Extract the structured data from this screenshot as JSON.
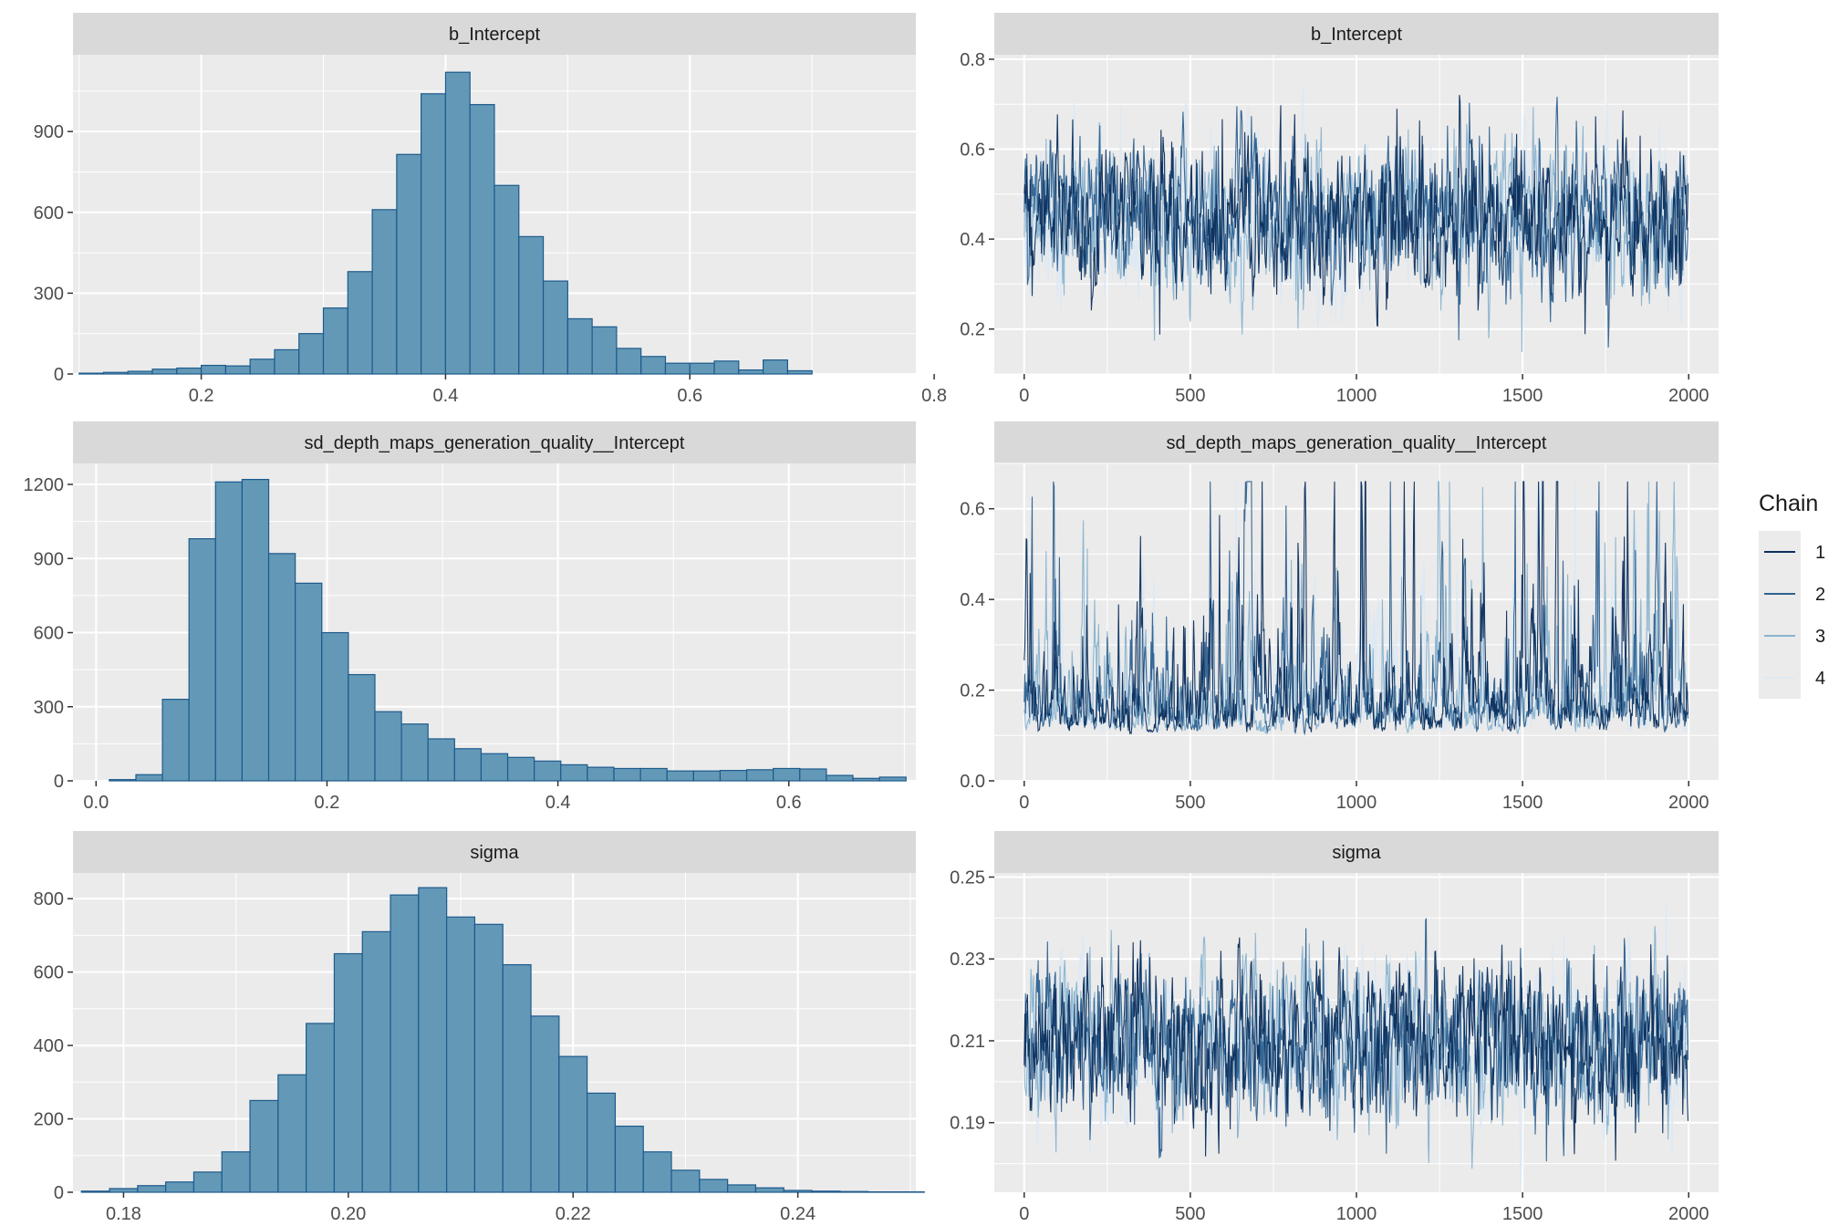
{
  "colors": {
    "panel_bg": "#ebebeb",
    "strip_bg": "#d9d9d9",
    "grid": "#ffffff",
    "hist_fill": "#6399b7",
    "hist_line": "#1d5a8c",
    "axis_text": "#4d4d4d",
    "chain_1": "#0b2e5c",
    "chain_2": "#2e6190",
    "chain_3": "#89b3cf",
    "chain_4": "#dde9f3"
  },
  "legend": {
    "title": "Chain",
    "items": [
      {
        "label": "1",
        "color": "#0b2e5c"
      },
      {
        "label": "2",
        "color": "#2e6190"
      },
      {
        "label": "3",
        "color": "#89b3cf"
      },
      {
        "label": "4",
        "color": "#dde9f3"
      }
    ],
    "position": "right"
  },
  "chart_data": [
    {
      "type": "bar",
      "title": "b_Intercept",
      "bins": [
        {
          "x": 0.11,
          "count": 3
        },
        {
          "x": 0.13,
          "count": 6
        },
        {
          "x": 0.15,
          "count": 10
        },
        {
          "x": 0.17,
          "count": 18
        },
        {
          "x": 0.19,
          "count": 22
        },
        {
          "x": 0.21,
          "count": 32
        },
        {
          "x": 0.23,
          "count": 30
        },
        {
          "x": 0.25,
          "count": 55
        },
        {
          "x": 0.27,
          "count": 90
        },
        {
          "x": 0.29,
          "count": 150
        },
        {
          "x": 0.31,
          "count": 245
        },
        {
          "x": 0.33,
          "count": 380
        },
        {
          "x": 0.35,
          "count": 610
        },
        {
          "x": 0.37,
          "count": 815
        },
        {
          "x": 0.39,
          "count": 1040
        },
        {
          "x": 0.41,
          "count": 1120
        },
        {
          "x": 0.43,
          "count": 1000
        },
        {
          "x": 0.45,
          "count": 700
        },
        {
          "x": 0.47,
          "count": 510
        },
        {
          "x": 0.49,
          "count": 345
        },
        {
          "x": 0.51,
          "count": 205
        },
        {
          "x": 0.53,
          "count": 175
        },
        {
          "x": 0.55,
          "count": 95
        },
        {
          "x": 0.57,
          "count": 65
        },
        {
          "x": 0.59,
          "count": 40
        },
        {
          "x": 0.61,
          "count": 40
        },
        {
          "x": 0.63,
          "count": 48
        },
        {
          "x": 0.65,
          "count": 15
        },
        {
          "x": 0.67,
          "count": 52
        },
        {
          "x": 0.69,
          "count": 12
        }
      ],
      "xlim": [
        0.095,
        0.785
      ],
      "ylim": [
        0,
        1185
      ],
      "xticks": [
        0.2,
        0.4,
        0.6,
        0.8
      ],
      "xtick_labels": [
        "0.2",
        "0.4",
        "0.6",
        "0.8"
      ],
      "yticks": [
        0,
        300,
        600,
        900
      ],
      "ytick_labels": [
        "0",
        "300",
        "600",
        "900"
      ]
    },
    {
      "type": "line",
      "title": "b_Intercept",
      "series": [
        {
          "name": "1"
        },
        {
          "name": "2"
        },
        {
          "name": "3"
        },
        {
          "name": "4"
        }
      ],
      "n_iter": 2000,
      "mean": 0.45,
      "value_range": [
        0.13,
        0.77
      ],
      "xlim": [
        -90,
        2090
      ],
      "ylim": [
        0.1,
        0.81
      ],
      "xticks": [
        0,
        500,
        1000,
        1500,
        2000
      ],
      "xtick_labels": [
        "0",
        "500",
        "1000",
        "1500",
        "2000"
      ],
      "yticks": [
        0.2,
        0.4,
        0.6,
        0.8
      ],
      "ytick_labels": [
        "0.2",
        "0.4",
        "0.6",
        "0.8"
      ]
    },
    {
      "type": "bar",
      "title": "sd_depth_maps_generation_quality__Intercept",
      "bins": [
        {
          "x": 0.023,
          "count": 5
        },
        {
          "x": 0.046,
          "count": 25
        },
        {
          "x": 0.069,
          "count": 330
        },
        {
          "x": 0.092,
          "count": 980
        },
        {
          "x": 0.115,
          "count": 1210
        },
        {
          "x": 0.138,
          "count": 1220
        },
        {
          "x": 0.161,
          "count": 920
        },
        {
          "x": 0.184,
          "count": 800
        },
        {
          "x": 0.207,
          "count": 600
        },
        {
          "x": 0.23,
          "count": 430
        },
        {
          "x": 0.253,
          "count": 280
        },
        {
          "x": 0.276,
          "count": 230
        },
        {
          "x": 0.299,
          "count": 170
        },
        {
          "x": 0.322,
          "count": 130
        },
        {
          "x": 0.345,
          "count": 110
        },
        {
          "x": 0.368,
          "count": 95
        },
        {
          "x": 0.391,
          "count": 80
        },
        {
          "x": 0.414,
          "count": 65
        },
        {
          "x": 0.437,
          "count": 55
        },
        {
          "x": 0.46,
          "count": 50
        },
        {
          "x": 0.483,
          "count": 50
        },
        {
          "x": 0.506,
          "count": 40
        },
        {
          "x": 0.529,
          "count": 40
        },
        {
          "x": 0.552,
          "count": 42
        },
        {
          "x": 0.575,
          "count": 45
        },
        {
          "x": 0.598,
          "count": 50
        },
        {
          "x": 0.621,
          "count": 48
        },
        {
          "x": 0.644,
          "count": 22
        },
        {
          "x": 0.667,
          "count": 10
        },
        {
          "x": 0.69,
          "count": 15
        }
      ],
      "xlim": [
        -0.02,
        0.71
      ],
      "ylim": [
        0,
        1285
      ],
      "xticks": [
        0.0,
        0.2,
        0.4,
        0.6
      ],
      "xtick_labels": [
        "0.0",
        "0.2",
        "0.4",
        "0.6"
      ],
      "yticks": [
        0,
        300,
        600,
        900,
        1200
      ],
      "ytick_labels": [
        "0",
        "300",
        "600",
        "900",
        "1200"
      ]
    },
    {
      "type": "line",
      "title": "sd_depth_maps_generation_quality__Intercept",
      "series": [
        {
          "name": "1"
        },
        {
          "name": "2"
        },
        {
          "name": "3"
        },
        {
          "name": "4"
        }
      ],
      "n_iter": 2000,
      "value_range": [
        0.02,
        0.66
      ],
      "xlim": [
        -90,
        2090
      ],
      "ylim": [
        0.0,
        0.7
      ],
      "xticks": [
        0,
        500,
        1000,
        1500,
        2000
      ],
      "xtick_labels": [
        "0",
        "500",
        "1000",
        "1500",
        "2000"
      ],
      "yticks": [
        0.0,
        0.2,
        0.4,
        0.6
      ],
      "ytick_labels": [
        "0.0",
        "0.2",
        "0.4",
        "0.6"
      ]
    },
    {
      "type": "bar",
      "title": "sigma",
      "bins": [
        {
          "x": 0.1775,
          "count": 3
        },
        {
          "x": 0.18,
          "count": 10
        },
        {
          "x": 0.1825,
          "count": 18
        },
        {
          "x": 0.185,
          "count": 28
        },
        {
          "x": 0.1875,
          "count": 55
        },
        {
          "x": 0.19,
          "count": 110
        },
        {
          "x": 0.1925,
          "count": 250
        },
        {
          "x": 0.195,
          "count": 320
        },
        {
          "x": 0.1975,
          "count": 460
        },
        {
          "x": 0.2,
          "count": 650
        },
        {
          "x": 0.2025,
          "count": 710
        },
        {
          "x": 0.205,
          "count": 810
        },
        {
          "x": 0.2075,
          "count": 830
        },
        {
          "x": 0.21,
          "count": 750
        },
        {
          "x": 0.2125,
          "count": 730
        },
        {
          "x": 0.215,
          "count": 620
        },
        {
          "x": 0.2175,
          "count": 480
        },
        {
          "x": 0.22,
          "count": 370
        },
        {
          "x": 0.2225,
          "count": 270
        },
        {
          "x": 0.225,
          "count": 180
        },
        {
          "x": 0.2275,
          "count": 110
        },
        {
          "x": 0.23,
          "count": 60
        },
        {
          "x": 0.2325,
          "count": 35
        },
        {
          "x": 0.235,
          "count": 20
        },
        {
          "x": 0.2375,
          "count": 12
        },
        {
          "x": 0.24,
          "count": 5
        },
        {
          "x": 0.2425,
          "count": 3
        },
        {
          "x": 0.245,
          "count": 2
        },
        {
          "x": 0.2475,
          "count": 1
        },
        {
          "x": 0.25,
          "count": 1
        }
      ],
      "xlim": [
        0.1755,
        0.2505
      ],
      "ylim": [
        0,
        870
      ],
      "xticks": [
        0.18,
        0.2,
        0.22,
        0.24
      ],
      "xtick_labels": [
        "0.18",
        "0.20",
        "0.22",
        "0.24"
      ],
      "yticks": [
        0,
        200,
        400,
        600,
        800
      ],
      "ytick_labels": [
        "0",
        "200",
        "400",
        "600",
        "800"
      ]
    },
    {
      "type": "line",
      "title": "sigma",
      "series": [
        {
          "name": "1"
        },
        {
          "name": "2"
        },
        {
          "name": "3"
        },
        {
          "name": "4"
        }
      ],
      "n_iter": 2000,
      "mean": 0.21,
      "value_range": [
        0.175,
        0.248
      ],
      "xlim": [
        -90,
        2090
      ],
      "ylim": [
        0.173,
        0.251
      ],
      "xticks": [
        0,
        500,
        1000,
        1500,
        2000
      ],
      "xtick_labels": [
        "0",
        "500",
        "1000",
        "1500",
        "2000"
      ],
      "yticks": [
        0.19,
        0.21,
        0.23,
        0.25
      ],
      "ytick_labels": [
        "0.19",
        "0.21",
        "0.23",
        "0.25"
      ]
    }
  ]
}
